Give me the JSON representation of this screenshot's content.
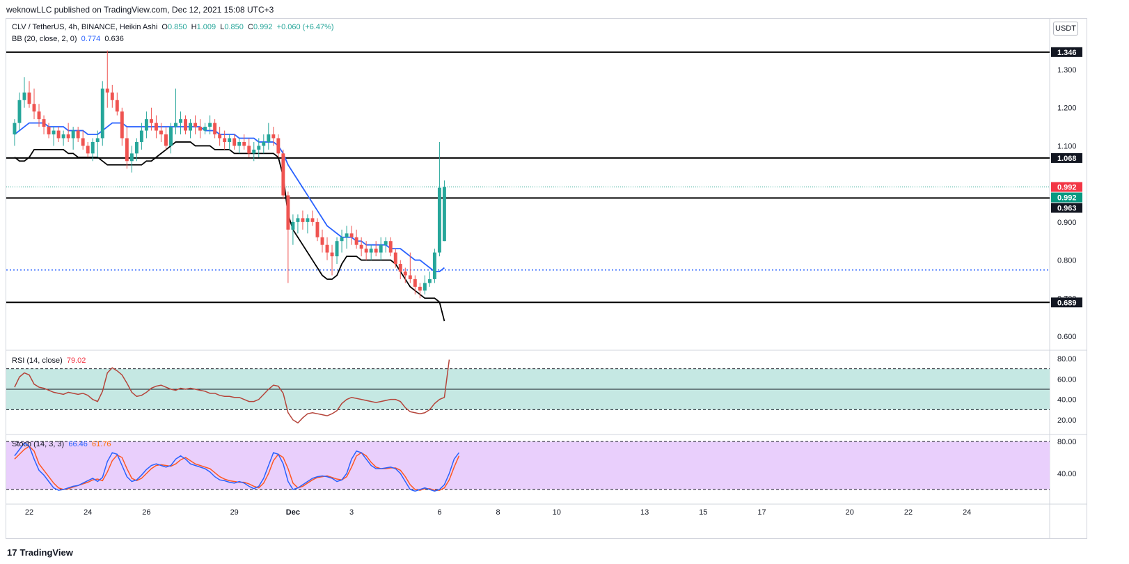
{
  "header": {
    "published": "weknowLLC published on TradingView.com, Dec 12, 2021 15:08 UTC+3"
  },
  "legend": {
    "symbol": "CLV / TetherUS, 4h, BINANCE, Heikin Ashi",
    "o_label": "O",
    "o_value": "0.850",
    "h_label": "H",
    "h_value": "1.009",
    "l_label": "L",
    "l_value": "0.850",
    "c_label": "C",
    "c_value": "0.992",
    "change": "+0.060 (+6.47%)",
    "bb_label": "BB (20, close, 2, 0)",
    "bb_value1": "0.774",
    "bb_value2": "0.636",
    "rsi_label": "RSI (14, close)",
    "rsi_value": "79.02",
    "stoch_label": "Stoch (14, 3, 3)",
    "stoch_k": "66.46",
    "stoch_d": "61.76"
  },
  "currency": "USDT",
  "footer": {
    "logo_mark": "17",
    "logo_text": "TradingView"
  },
  "colors": {
    "up": "#26a69a",
    "down": "#ef5350",
    "bb_basis": "#2962ff",
    "bb_lower": "#000000",
    "rsi": "#b5443a",
    "stoch_k": "#2962ff",
    "stoch_d": "#ff5722",
    "rsi_band": "#c5e8e3",
    "stoch_band": "#e9cffc"
  },
  "chart_data": [
    {
      "type": "candlestick",
      "title": "CLV / TetherUS, 4h, BINANCE, Heikin Ashi",
      "ylim": [
        0.56,
        1.39
      ],
      "yticks": [
        1.3,
        1.2,
        1.1,
        0.9,
        0.8,
        0.7,
        0.6
      ],
      "ytick_labels": [
        "1.300",
        "1.200",
        "1.100",
        "0.900",
        "0.800",
        "0.700",
        "0.600"
      ],
      "x_tick_labels": [
        "22",
        "24",
        "26",
        "29",
        "Dec",
        "3",
        "6",
        "8",
        "10",
        "13",
        "15",
        "17",
        "20",
        "22",
        "24"
      ],
      "x_tick_days": [
        22,
        24,
        26,
        29,
        31,
        33,
        36,
        38,
        40,
        43,
        45,
        47,
        50,
        52,
        54
      ],
      "x_tick_bold": [
        false,
        false,
        false,
        false,
        true,
        false,
        false,
        false,
        false,
        false,
        false,
        false,
        false,
        false,
        false
      ],
      "candles_day0": 21.5,
      "candles_per_day": 6,
      "candles": [
        [
          1.13,
          1.17,
          1.1,
          1.16
        ],
        [
          1.16,
          1.24,
          1.14,
          1.22
        ],
        [
          1.22,
          1.28,
          1.2,
          1.24
        ],
        [
          1.24,
          1.27,
          1.2,
          1.21
        ],
        [
          1.21,
          1.25,
          1.17,
          1.19
        ],
        [
          1.19,
          1.21,
          1.15,
          1.17
        ],
        [
          1.17,
          1.18,
          1.13,
          1.15
        ],
        [
          1.15,
          1.16,
          1.12,
          1.13
        ],
        [
          1.13,
          1.15,
          1.1,
          1.14
        ],
        [
          1.14,
          1.15,
          1.11,
          1.12
        ],
        [
          1.12,
          1.14,
          1.1,
          1.13
        ],
        [
          1.13,
          1.16,
          1.11,
          1.12
        ],
        [
          1.12,
          1.15,
          1.09,
          1.14
        ],
        [
          1.14,
          1.15,
          1.11,
          1.12
        ],
        [
          1.12,
          1.14,
          1.09,
          1.1
        ],
        [
          1.1,
          1.11,
          1.07,
          1.08
        ],
        [
          1.08,
          1.12,
          1.06,
          1.11
        ],
        [
          1.11,
          1.14,
          1.07,
          1.12
        ],
        [
          1.12,
          1.27,
          1.1,
          1.25
        ],
        [
          1.25,
          1.35,
          1.2,
          1.24
        ],
        [
          1.24,
          1.26,
          1.2,
          1.22
        ],
        [
          1.22,
          1.24,
          1.18,
          1.19
        ],
        [
          1.19,
          1.2,
          1.1,
          1.12
        ],
        [
          1.12,
          1.15,
          1.04,
          1.06
        ],
        [
          1.06,
          1.1,
          1.03,
          1.08
        ],
        [
          1.08,
          1.12,
          1.06,
          1.11
        ],
        [
          1.11,
          1.16,
          1.09,
          1.14
        ],
        [
          1.14,
          1.19,
          1.12,
          1.17
        ],
        [
          1.17,
          1.2,
          1.14,
          1.16
        ],
        [
          1.16,
          1.18,
          1.12,
          1.14
        ],
        [
          1.14,
          1.16,
          1.11,
          1.13
        ],
        [
          1.13,
          1.15,
          1.09,
          1.1
        ],
        [
          1.1,
          1.16,
          1.08,
          1.15
        ],
        [
          1.15,
          1.25,
          1.13,
          1.16
        ],
        [
          1.16,
          1.19,
          1.13,
          1.17
        ],
        [
          1.17,
          1.18,
          1.13,
          1.14
        ],
        [
          1.14,
          1.17,
          1.12,
          1.16
        ],
        [
          1.16,
          1.18,
          1.13,
          1.15
        ],
        [
          1.15,
          1.17,
          1.12,
          1.14
        ],
        [
          1.14,
          1.16,
          1.13,
          1.15
        ],
        [
          1.15,
          1.18,
          1.13,
          1.16
        ],
        [
          1.16,
          1.17,
          1.12,
          1.13
        ],
        [
          1.13,
          1.15,
          1.1,
          1.12
        ],
        [
          1.12,
          1.14,
          1.09,
          1.11
        ],
        [
          1.11,
          1.13,
          1.09,
          1.12
        ],
        [
          1.12,
          1.13,
          1.09,
          1.1
        ],
        [
          1.1,
          1.12,
          1.08,
          1.11
        ],
        [
          1.11,
          1.13,
          1.09,
          1.1
        ],
        [
          1.1,
          1.12,
          1.07,
          1.08
        ],
        [
          1.08,
          1.11,
          1.06,
          1.09
        ],
        [
          1.09,
          1.12,
          1.07,
          1.1
        ],
        [
          1.1,
          1.13,
          1.08,
          1.11
        ],
        [
          1.11,
          1.16,
          1.09,
          1.13
        ],
        [
          1.13,
          1.15,
          1.1,
          1.12
        ],
        [
          1.12,
          1.13,
          1.07,
          1.08
        ],
        [
          1.08,
          1.09,
          0.96,
          0.97
        ],
        [
          0.97,
          0.98,
          0.74,
          0.88
        ],
        [
          0.88,
          0.92,
          0.84,
          0.9
        ],
        [
          0.9,
          0.92,
          0.87,
          0.91
        ],
        [
          0.91,
          0.93,
          0.88,
          0.9
        ],
        [
          0.9,
          0.92,
          0.87,
          0.91
        ],
        [
          0.91,
          0.93,
          0.89,
          0.9
        ],
        [
          0.9,
          0.91,
          0.85,
          0.86
        ],
        [
          0.86,
          0.88,
          0.82,
          0.84
        ],
        [
          0.84,
          0.86,
          0.8,
          0.82
        ],
        [
          0.82,
          0.84,
          0.76,
          0.81
        ],
        [
          0.81,
          0.86,
          0.79,
          0.85
        ],
        [
          0.85,
          0.88,
          0.82,
          0.86
        ],
        [
          0.86,
          0.89,
          0.83,
          0.87
        ],
        [
          0.87,
          0.89,
          0.84,
          0.86
        ],
        [
          0.86,
          0.88,
          0.83,
          0.84
        ],
        [
          0.84,
          0.86,
          0.81,
          0.83
        ],
        [
          0.83,
          0.85,
          0.8,
          0.82
        ],
        [
          0.82,
          0.84,
          0.8,
          0.83
        ],
        [
          0.83,
          0.85,
          0.81,
          0.82
        ],
        [
          0.82,
          0.86,
          0.8,
          0.84
        ],
        [
          0.84,
          0.86,
          0.82,
          0.85
        ],
        [
          0.85,
          0.86,
          0.81,
          0.82
        ],
        [
          0.82,
          0.83,
          0.78,
          0.79
        ],
        [
          0.79,
          0.8,
          0.75,
          0.77
        ],
        [
          0.77,
          0.78,
          0.74,
          0.76
        ],
        [
          0.76,
          0.82,
          0.74,
          0.75
        ],
        [
          0.75,
          0.76,
          0.71,
          0.73
        ],
        [
          0.73,
          0.74,
          0.7,
          0.72
        ],
        [
          0.72,
          0.76,
          0.71,
          0.74
        ],
        [
          0.74,
          0.77,
          0.73,
          0.75
        ],
        [
          0.75,
          0.83,
          0.74,
          0.82
        ],
        [
          0.82,
          1.11,
          0.81,
          0.99
        ],
        [
          0.85,
          1.009,
          0.85,
          0.992
        ]
      ],
      "series": [
        {
          "name": "BB (20, close, 2, 0)",
          "style": "line",
          "values": [
            1.13,
            1.14,
            1.15,
            1.16,
            1.16,
            1.16,
            1.16,
            1.15,
            1.15,
            1.15,
            1.15,
            1.14,
            1.14,
            1.14,
            1.14,
            1.13,
            1.13,
            1.13,
            1.14,
            1.15,
            1.16,
            1.16,
            1.16,
            1.15,
            1.15,
            1.15,
            1.15,
            1.15,
            1.15,
            1.15,
            1.15,
            1.15,
            1.15,
            1.15,
            1.15,
            1.15,
            1.15,
            1.15,
            1.15,
            1.14,
            1.14,
            1.14,
            1.13,
            1.13,
            1.13,
            1.13,
            1.12,
            1.12,
            1.12,
            1.12,
            1.11,
            1.11,
            1.11,
            1.11,
            1.1,
            1.08,
            1.05,
            1.03,
            1.01,
            0.99,
            0.97,
            0.95,
            0.93,
            0.91,
            0.89,
            0.88,
            0.87,
            0.86,
            0.86,
            0.86,
            0.85,
            0.85,
            0.84,
            0.84,
            0.84,
            0.84,
            0.84,
            0.83,
            0.83,
            0.83,
            0.82,
            0.81,
            0.8,
            0.8,
            0.79,
            0.78,
            0.77,
            0.77,
            0.78
          ]
        },
        {
          "name": "",
          "style": "line",
          "values": [
            1.07,
            1.06,
            1.06,
            1.07,
            1.09,
            1.09,
            1.09,
            1.09,
            1.09,
            1.09,
            1.09,
            1.08,
            1.08,
            1.07,
            1.07,
            1.07,
            1.07,
            1.07,
            1.06,
            1.05,
            1.05,
            1.05,
            1.05,
            1.05,
            1.05,
            1.05,
            1.05,
            1.06,
            1.06,
            1.07,
            1.08,
            1.09,
            1.1,
            1.11,
            1.11,
            1.11,
            1.11,
            1.1,
            1.1,
            1.1,
            1.1,
            1.09,
            1.09,
            1.09,
            1.09,
            1.08,
            1.08,
            1.08,
            1.08,
            1.08,
            1.08,
            1.08,
            1.08,
            1.08,
            1.07,
            1.02,
            0.92,
            0.88,
            0.86,
            0.84,
            0.82,
            0.8,
            0.78,
            0.76,
            0.75,
            0.75,
            0.76,
            0.79,
            0.81,
            0.81,
            0.81,
            0.8,
            0.8,
            0.8,
            0.8,
            0.8,
            0.8,
            0.8,
            0.79,
            0.77,
            0.75,
            0.73,
            0.72,
            0.71,
            0.7,
            0.7,
            0.7,
            0.69,
            0.64
          ]
        },
        {
          "name": "",
          "style": "dotted",
          "values": [
            0.774
          ]
        }
      ],
      "horizontal_lines": [
        1.346,
        1.068,
        0.963,
        0.689
      ],
      "price_labels": [
        {
          "text": "1.346",
          "value": 1.346,
          "bg": "#131722"
        },
        {
          "text": "1.068",
          "value": 1.068,
          "bg": "#131722"
        },
        {
          "text": "0.992",
          "value": 0.992,
          "bg": "#f23645"
        },
        {
          "text": "0.992",
          "value": 0.992,
          "bg": "#089981"
        },
        {
          "text": "0.963",
          "value": 0.963,
          "bg": "#131722"
        },
        {
          "text": "0.689",
          "value": 0.689,
          "bg": "#131722"
        }
      ]
    },
    {
      "type": "line",
      "title": "RSI (14, close)",
      "ylim": [
        10,
        85
      ],
      "yticks": [
        80,
        60,
        40,
        20
      ],
      "ytick_labels": [
        "80.00",
        "60.00",
        "40.00",
        "20.00"
      ],
      "band": [
        30,
        70
      ],
      "midline": 50,
      "series": [
        {
          "name": "RSI (14, close)",
          "values": [
            52,
            62,
            66,
            64,
            55,
            52,
            51,
            49,
            47,
            46,
            45,
            47,
            46,
            45,
            46,
            44,
            40,
            38,
            48,
            66,
            71,
            68,
            64,
            56,
            47,
            43,
            44,
            47,
            51,
            53,
            54,
            52,
            50,
            49,
            51,
            50,
            51,
            50,
            49,
            48,
            46,
            46,
            44,
            43,
            43,
            42,
            42,
            40,
            38,
            38,
            40,
            45,
            50,
            54,
            53,
            46,
            27,
            20,
            17,
            22,
            26,
            27,
            26,
            25,
            24,
            26,
            29,
            36,
            40,
            42,
            41,
            40,
            39,
            38,
            37,
            38,
            39,
            40,
            40,
            38,
            32,
            28,
            27,
            26,
            27,
            30,
            36,
            40,
            42,
            79
          ]
        }
      ]
    },
    {
      "type": "line",
      "title": "Stoch (14, 3, 3)",
      "ylim": [
        10,
        85
      ],
      "yticks": [
        80,
        40
      ],
      "ytick_labels": [
        "80.00",
        "40.00"
      ],
      "band": [
        20,
        80
      ],
      "series": [
        {
          "name": "66.46",
          "values": [
            62,
            70,
            78,
            74,
            58,
            44,
            38,
            30,
            22,
            19,
            20,
            22,
            24,
            25,
            28,
            31,
            34,
            30,
            35,
            55,
            66,
            64,
            50,
            36,
            30,
            32,
            38,
            45,
            50,
            52,
            50,
            48,
            50,
            58,
            62,
            58,
            52,
            50,
            48,
            46,
            42,
            36,
            32,
            31,
            29,
            28,
            30,
            28,
            24,
            21,
            24,
            34,
            50,
            66,
            64,
            52,
            30,
            20,
            22,
            26,
            30,
            34,
            36,
            37,
            36,
            34,
            30,
            32,
            40,
            58,
            68,
            66,
            58,
            50,
            46,
            46,
            47,
            48,
            46,
            40,
            30,
            20,
            18,
            20,
            22,
            20,
            18,
            20,
            26,
            40,
            58,
            66
          ]
        },
        {
          "name": "61.76",
          "values": [
            58,
            64,
            70,
            74,
            68,
            52,
            44,
            36,
            28,
            22,
            20,
            21,
            23,
            25,
            27,
            29,
            32,
            33,
            31,
            42,
            56,
            63,
            60,
            46,
            34,
            31,
            34,
            40,
            46,
            50,
            51,
            50,
            49,
            52,
            57,
            60,
            56,
            52,
            50,
            48,
            46,
            41,
            36,
            33,
            31,
            30,
            29,
            29,
            27,
            24,
            22,
            28,
            40,
            56,
            64,
            60,
            46,
            28,
            22,
            24,
            28,
            32,
            35,
            36,
            37,
            35,
            33,
            32,
            36,
            48,
            62,
            66,
            62,
            54,
            48,
            46,
            46,
            47,
            47,
            44,
            36,
            26,
            20,
            19,
            21,
            21,
            19,
            19,
            22,
            32,
            48,
            62
          ]
        }
      ]
    }
  ]
}
